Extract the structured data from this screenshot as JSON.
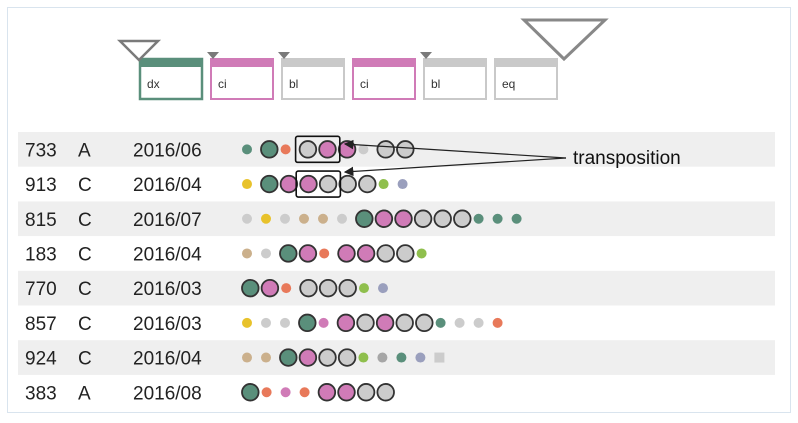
{
  "legend": [
    {
      "label": "dx",
      "color": "#5a8f7b",
      "marker": "triangle-small"
    },
    {
      "label": "ci",
      "color": "#d07bb7",
      "marker": "triangle-tiny"
    },
    {
      "label": "bl",
      "color": "#c9c9c9",
      "marker": "triangle-tiny"
    },
    {
      "label": "ci",
      "color": "#d07bb7",
      "marker": "none"
    },
    {
      "label": "bl",
      "color": "#c9c9c9",
      "marker": "triangle-tiny"
    },
    {
      "label": "eq",
      "color": "#c9c9c9",
      "marker": "triangle-large"
    }
  ],
  "annotation": {
    "text": "transposition"
  },
  "rows": [
    {
      "id": "733",
      "type": "A",
      "date": "2016/06",
      "seq": [
        [
          "s",
          "g"
        ],
        [
          "b",
          "g"
        ],
        [
          "s",
          "o"
        ],
        [
          "b",
          "l"
        ],
        [
          "b",
          "p"
        ],
        [
          "b",
          "p"
        ],
        [
          "s",
          "l"
        ],
        [
          "b",
          "l"
        ],
        [
          "b",
          "l"
        ]
      ],
      "boxed": [
        3,
        4
      ]
    },
    {
      "id": "913",
      "type": "C",
      "date": "2016/04",
      "seq": [
        [
          "s",
          "y"
        ],
        [
          "b",
          "g"
        ],
        [
          "b",
          "p"
        ],
        [
          "b",
          "p"
        ],
        [
          "b",
          "l"
        ],
        [
          "b",
          "l"
        ],
        [
          "b",
          "l"
        ],
        [
          "s",
          "lg"
        ],
        [
          "s",
          "bl"
        ]
      ],
      "boxed": [
        3,
        4
      ]
    },
    {
      "id": "815",
      "type": "C",
      "date": "2016/07",
      "seq": [
        [
          "s",
          "l"
        ],
        [
          "s",
          "y"
        ],
        [
          "s",
          "l"
        ],
        [
          "s",
          "t"
        ],
        [
          "s",
          "t"
        ],
        [
          "s",
          "l"
        ],
        [
          "b",
          "g"
        ],
        [
          "b",
          "p"
        ],
        [
          "b",
          "p"
        ],
        [
          "b",
          "l"
        ],
        [
          "b",
          "l"
        ],
        [
          "b",
          "l"
        ],
        [
          "s",
          "g"
        ],
        [
          "s",
          "g"
        ],
        [
          "s",
          "g"
        ]
      ],
      "boxed": []
    },
    {
      "id": "183",
      "type": "C",
      "date": "2016/04",
      "seq": [
        [
          "s",
          "t"
        ],
        [
          "s",
          "l"
        ],
        [
          "b",
          "g"
        ],
        [
          "b",
          "p"
        ],
        [
          "s",
          "o"
        ],
        [
          "b",
          "p"
        ],
        [
          "b",
          "p"
        ],
        [
          "b",
          "l"
        ],
        [
          "b",
          "l"
        ],
        [
          "s",
          "lg"
        ]
      ],
      "boxed": []
    },
    {
      "id": "770",
      "type": "C",
      "date": "2016/03",
      "seq": [
        [
          "b",
          "g"
        ],
        [
          "b",
          "p"
        ],
        [
          "s",
          "o"
        ],
        [
          "b",
          "l"
        ],
        [
          "b",
          "l"
        ],
        [
          "b",
          "l"
        ],
        [
          "s",
          "lg"
        ],
        [
          "s",
          "bl"
        ]
      ],
      "boxed": []
    },
    {
      "id": "857",
      "type": "C",
      "date": "2016/03",
      "seq": [
        [
          "s",
          "y"
        ],
        [
          "s",
          "l"
        ],
        [
          "s",
          "l"
        ],
        [
          "b",
          "g"
        ],
        [
          "s",
          "p"
        ],
        [
          "b",
          "p"
        ],
        [
          "b",
          "l"
        ],
        [
          "b",
          "p"
        ],
        [
          "b",
          "l"
        ],
        [
          "b",
          "l"
        ],
        [
          "s",
          "g"
        ],
        [
          "s",
          "l"
        ],
        [
          "s",
          "l"
        ],
        [
          "s",
          "o"
        ]
      ],
      "boxed": []
    },
    {
      "id": "924",
      "type": "C",
      "date": "2016/04",
      "seq": [
        [
          "s",
          "t"
        ],
        [
          "s",
          "t"
        ],
        [
          "b",
          "g"
        ],
        [
          "b",
          "p"
        ],
        [
          "b",
          "l"
        ],
        [
          "b",
          "l"
        ],
        [
          "s",
          "lg"
        ],
        [
          "s",
          "dg"
        ],
        [
          "s",
          "g"
        ],
        [
          "s",
          "bl"
        ],
        [
          "q",
          "l"
        ]
      ],
      "boxed": []
    },
    {
      "id": "383",
      "type": "A",
      "date": "2016/08",
      "seq": [
        [
          "b",
          "g"
        ],
        [
          "s",
          "o"
        ],
        [
          "s",
          "p"
        ],
        [
          "s",
          "o"
        ],
        [
          "b",
          "p"
        ],
        [
          "b",
          "p"
        ],
        [
          "b",
          "l"
        ],
        [
          "b",
          "l"
        ]
      ],
      "boxed": []
    }
  ],
  "colors": {
    "g": "#5a8f7b",
    "p": "#d07bb7",
    "l": "#cccccc",
    "o": "#e8795a",
    "y": "#e8c22b",
    "lg": "#8fbf4d",
    "bl": "#9a9fbd",
    "t": "#cbb08c",
    "dg": "#a6a6a6",
    "stripe": "#efefef",
    "dark": "#333333",
    "text": "#222222",
    "triangle": "#7a7a7a",
    "triangleLarge": "#888888"
  }
}
